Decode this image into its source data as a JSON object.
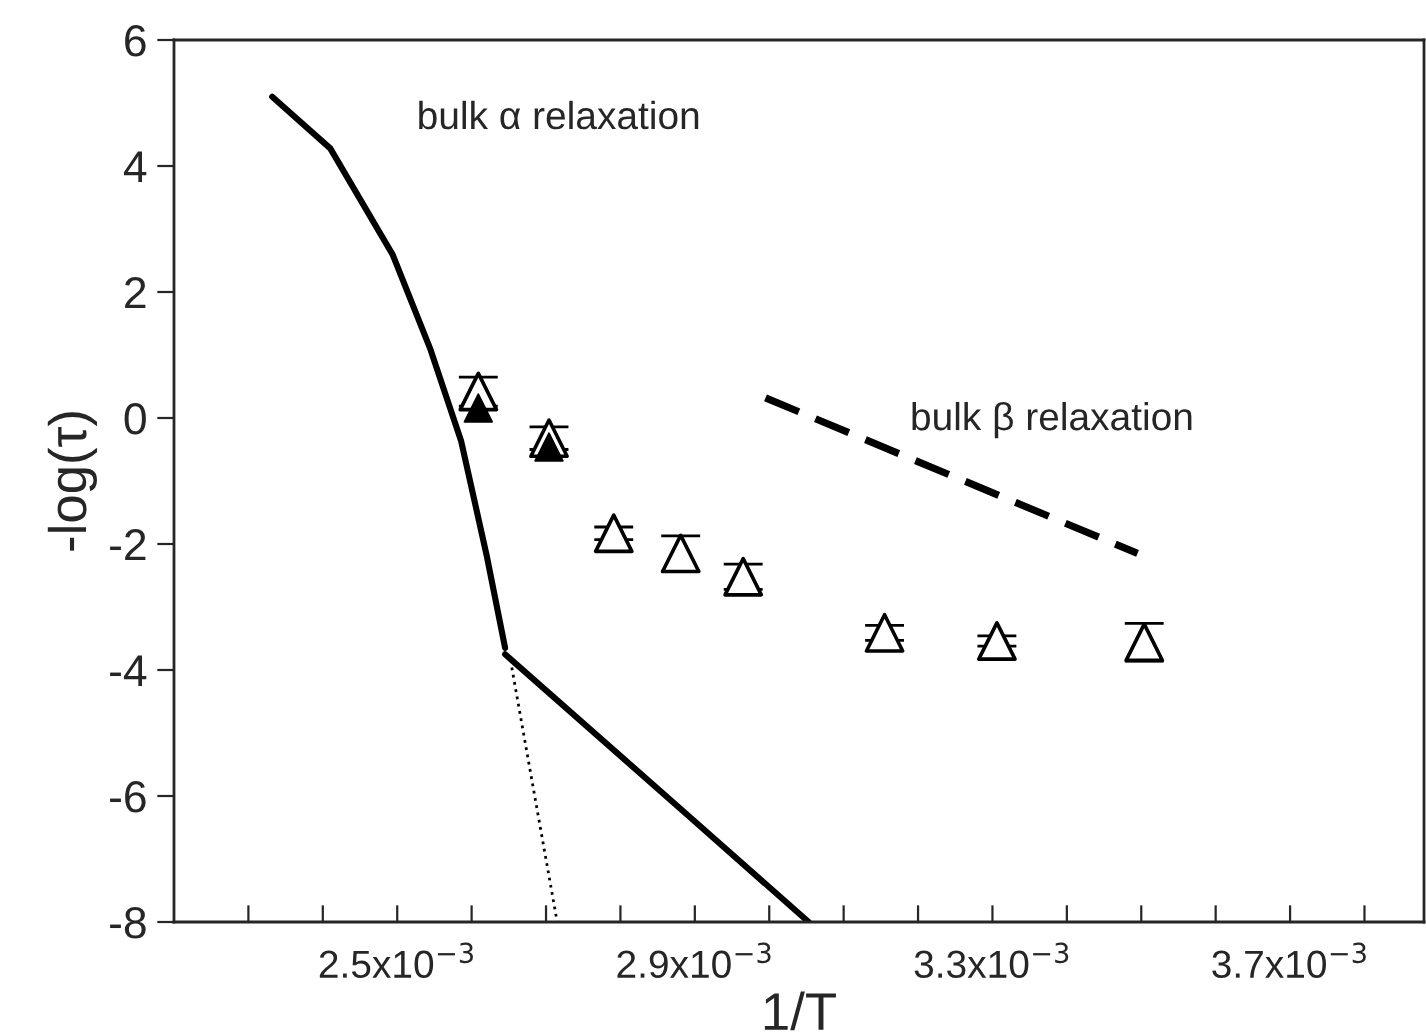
{
  "chart_data": {
    "type": "line",
    "xlabel": "1/T",
    "ylabel": "-log(τ)",
    "xlim": [
      0.0022,
      0.00388
    ],
    "ylim": [
      -8,
      6
    ],
    "xticks": [
      {
        "value": 0.0023,
        "label": null
      },
      {
        "value": 0.0024,
        "label": null
      },
      {
        "value": 0.0025,
        "label": "2.5x10$^{−3}$"
      },
      {
        "value": 0.0026,
        "label": null
      },
      {
        "value": 0.0027,
        "label": null
      },
      {
        "value": 0.0028,
        "label": null
      },
      {
        "value": 0.0029,
        "label": "2.9x10$^{−3}$"
      },
      {
        "value": 0.003,
        "label": null
      },
      {
        "value": 0.0031,
        "label": null
      },
      {
        "value": 0.0032,
        "label": null
      },
      {
        "value": 0.0033,
        "label": "3.3x10$^{−3}$"
      },
      {
        "value": 0.0034,
        "label": null
      },
      {
        "value": 0.0035,
        "label": null
      },
      {
        "value": 0.0036,
        "label": null
      },
      {
        "value": 0.0037,
        "label": "3.7x10$^{−3}$"
      },
      {
        "value": 0.0038,
        "label": null
      }
    ],
    "yticks": [
      -8,
      -6,
      -4,
      -2,
      0,
      2,
      4,
      6
    ],
    "grid": false,
    "series": [
      {
        "name": "bulk α relaxation",
        "line_style": "solid",
        "color": "#000000",
        "x": [
          0.002332,
          0.00241,
          0.002494,
          0.002544,
          0.002586,
          0.00262,
          0.002645
        ],
        "values": [
          5.1,
          4.28,
          2.59,
          1.11,
          -0.37,
          -2.17,
          -3.65
        ]
      },
      {
        "line_style": "solid",
        "color": "#000000",
        "x": [
          0.002645,
          0.002889,
          0.003053
        ],
        "values": [
          -3.75,
          -6.29,
          -8
        ]
      },
      {
        "line_style": "dotted",
        "color": "#000000",
        "x": [
          0.002654,
          0.002715
        ],
        "values": [
          -3.96,
          -8
        ]
      },
      {
        "name": "bulk β relaxation",
        "line_style": "dashed",
        "color": "#000000",
        "x": [
          0.002995,
          0.003495
        ],
        "values": [
          0.32,
          -2.15
        ]
      },
      {
        "type": "scatter",
        "marker": "triangle",
        "color": "#ffffff",
        "x": [
          0.002609,
          0.002704,
          0.002791,
          0.002881,
          0.002965,
          0.003155,
          0.003306,
          0.003504
        ],
        "values": [
          0.42,
          -0.32,
          -1.83,
          -2.15,
          -2.52,
          -3.41,
          -3.54,
          -3.56
        ],
        "errors": [
          0.23,
          0.18,
          0.1,
          0.28,
          0.2,
          0.12,
          0.08,
          0.3
        ]
      },
      {
        "type": "scatter",
        "marker": "triangle",
        "color": "#000000",
        "x": [
          0.002609,
          0.002704
        ],
        "values": [
          0.16,
          -0.46
        ]
      }
    ]
  }
}
